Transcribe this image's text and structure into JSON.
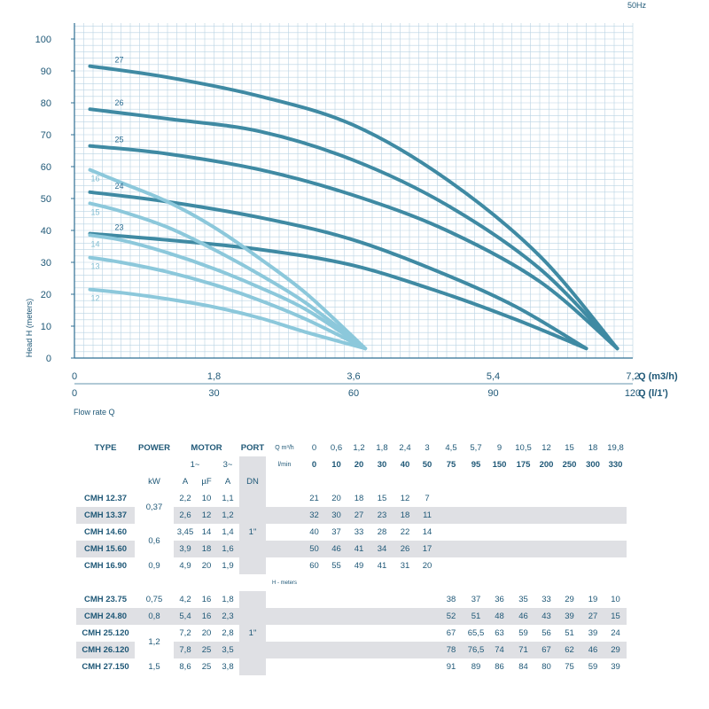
{
  "chart_data": {
    "type": "line",
    "frequency_label": "50Hz",
    "ylabel": "Head H (meters)",
    "xlabel": "Flow rate Q",
    "x_axis_label": "Q (m3/h)",
    "x2_axis_label": "Q (l/1')",
    "ylim": [
      0,
      105
    ],
    "xlim": [
      0,
      7.2
    ],
    "y_ticks": [
      "0",
      "10",
      "20",
      "30",
      "40",
      "50",
      "60",
      "70",
      "80",
      "90",
      "100"
    ],
    "x_ticks": [
      "0",
      "1,8",
      "3,6",
      "5,4",
      "7,2"
    ],
    "x2_ticks": [
      "0",
      "30",
      "60",
      "90",
      "120"
    ],
    "grid": true,
    "series": [
      {
        "name": "12",
        "family": "light",
        "color": "#8cc8db",
        "x": [
          0.2,
          0.6,
          1.2,
          1.8,
          2.4,
          3.0,
          3.75
        ],
        "y": [
          21.5,
          20.5,
          18.5,
          16,
          12.5,
          8,
          3
        ]
      },
      {
        "name": "13",
        "family": "light",
        "color": "#8cc8db",
        "x": [
          0.2,
          0.6,
          1.2,
          1.8,
          2.4,
          3.0,
          3.75
        ],
        "y": [
          31.5,
          30,
          27,
          23,
          18,
          12,
          3
        ]
      },
      {
        "name": "14",
        "family": "light",
        "color": "#8cc8db",
        "x": [
          0.2,
          0.6,
          1.2,
          1.8,
          2.4,
          3.0,
          3.75
        ],
        "y": [
          38.5,
          37,
          33,
          28,
          22,
          15,
          3
        ]
      },
      {
        "name": "15",
        "family": "light",
        "color": "#8cc8db",
        "x": [
          0.2,
          0.6,
          1.2,
          1.8,
          2.4,
          3.0,
          3.75
        ],
        "y": [
          48.5,
          46,
          41,
          34,
          26,
          17,
          3
        ]
      },
      {
        "name": "16",
        "family": "light",
        "color": "#8cc8db",
        "x": [
          0.2,
          0.6,
          1.2,
          1.8,
          2.4,
          3.0,
          3.75
        ],
        "y": [
          59,
          55,
          49,
          41,
          31,
          20,
          3
        ]
      },
      {
        "name": "23",
        "family": "dark",
        "color": "#3f8aa3",
        "x": [
          0.2,
          1.2,
          2.4,
          3.6,
          4.8,
          5.7,
          6.6
        ],
        "y": [
          39,
          37,
          34,
          29,
          20,
          12,
          3
        ]
      },
      {
        "name": "24",
        "family": "dark",
        "color": "#3f8aa3",
        "x": [
          0.2,
          1.2,
          2.4,
          3.6,
          4.8,
          5.7,
          6.6
        ],
        "y": [
          52,
          49,
          44,
          37,
          26,
          16,
          3
        ]
      },
      {
        "name": "25",
        "family": "dark",
        "color": "#3f8aa3",
        "x": [
          0.2,
          1.2,
          2.4,
          3.6,
          4.8,
          6.0,
          7.0
        ],
        "y": [
          66.5,
          64,
          59,
          51,
          40,
          24,
          3
        ]
      },
      {
        "name": "26",
        "family": "dark",
        "color": "#3f8aa3",
        "x": [
          0.2,
          1.2,
          2.4,
          3.6,
          4.8,
          6.0,
          7.0
        ],
        "y": [
          78,
          75,
          71,
          62,
          48,
          28,
          3
        ]
      },
      {
        "name": "27",
        "family": "dark",
        "color": "#3f8aa3",
        "x": [
          0.2,
          1.2,
          2.4,
          3.6,
          4.8,
          6.0,
          7.0
        ],
        "y": [
          91.5,
          88,
          82,
          73,
          56,
          32,
          3
        ]
      }
    ]
  },
  "table": {
    "headers": {
      "type": "TYPE",
      "power": "POWER",
      "motor": "MOTOR",
      "port": "PORT",
      "q_m3h": "Q m³/h",
      "q_lmin": "l/min",
      "phase1": "1~",
      "phase3": "3~",
      "kw": "kW",
      "a": "A",
      "uf": "µF",
      "a3": "A",
      "dn": "DN"
    },
    "q_m3h_values": [
      "0",
      "0,6",
      "1,2",
      "1,8",
      "2,4",
      "3",
      "4,5",
      "5,7",
      "9",
      "10,5",
      "12",
      "15",
      "18",
      "19,8"
    ],
    "q_lmin_values": [
      "0",
      "10",
      "20",
      "30",
      "40",
      "50",
      "75",
      "95",
      "150",
      "175",
      "200",
      "250",
      "300",
      "330"
    ],
    "h_meters_label": "H - meters",
    "group1": {
      "port_value": "1\"",
      "rows": [
        {
          "type": "CMH 12.37",
          "power": "0,37",
          "a": "2,2",
          "uf": "10",
          "a3": "1,1",
          "heads": [
            "21",
            "20",
            "18",
            "15",
            "12",
            "7",
            "",
            "",
            "",
            "",
            "",
            "",
            "",
            ""
          ]
        },
        {
          "type": "CMH 13.37",
          "power": "",
          "a": "2,6",
          "uf": "12",
          "a3": "1,2",
          "heads": [
            "32",
            "30",
            "27",
            "23",
            "18",
            "11",
            "",
            "",
            "",
            "",
            "",
            "",
            "",
            ""
          ]
        },
        {
          "type": "CMH 14.60",
          "power": "0,6",
          "a": "3,45",
          "uf": "14",
          "a3": "1,4",
          "heads": [
            "40",
            "37",
            "33",
            "28",
            "22",
            "14",
            "",
            "",
            "",
            "",
            "",
            "",
            "",
            ""
          ]
        },
        {
          "type": "CMH 15.60",
          "power": "",
          "a": "3,9",
          "uf": "18",
          "a3": "1,6",
          "heads": [
            "50",
            "46",
            "41",
            "34",
            "26",
            "17",
            "",
            "",
            "",
            "",
            "",
            "",
            "",
            ""
          ]
        },
        {
          "type": "CMH 16.90",
          "power": "0,9",
          "a": "4,9",
          "uf": "20",
          "a3": "1,9",
          "heads": [
            "60",
            "55",
            "49",
            "41",
            "31",
            "20",
            "",
            "",
            "",
            "",
            "",
            "",
            "",
            ""
          ]
        }
      ]
    },
    "group2": {
      "port_value": "1\"",
      "rows": [
        {
          "type": "CMH 23.75",
          "power": "0,75",
          "a": "4,2",
          "uf": "16",
          "a3": "1,8",
          "heads": [
            "",
            "",
            "",
            "",
            "",
            "",
            "38",
            "37",
            "36",
            "35",
            "33",
            "29",
            "19",
            "10"
          ]
        },
        {
          "type": "CMH 24.80",
          "power": "0,8",
          "a": "5,4",
          "uf": "16",
          "a3": "2,3",
          "heads": [
            "",
            "",
            "",
            "",
            "",
            "",
            "52",
            "51",
            "48",
            "46",
            "43",
            "39",
            "27",
            "15"
          ]
        },
        {
          "type": "CMH 25.120",
          "power": "1,2",
          "a": "7,2",
          "uf": "20",
          "a3": "2,8",
          "heads": [
            "",
            "",
            "",
            "",
            "",
            "",
            "67",
            "65,5",
            "63",
            "59",
            "56",
            "51",
            "39",
            "24"
          ]
        },
        {
          "type": "CMH 26.120",
          "power": "",
          "a": "7,8",
          "uf": "25",
          "a3": "3,5",
          "heads": [
            "",
            "",
            "",
            "",
            "",
            "",
            "78",
            "76,5",
            "74",
            "71",
            "67",
            "62",
            "46",
            "29"
          ]
        },
        {
          "type": "CMH 27.150",
          "power": "1,5",
          "a": "8,6",
          "uf": "25",
          "a3": "3,8",
          "heads": [
            "",
            "",
            "",
            "",
            "",
            "",
            "91",
            "89",
            "86",
            "84",
            "80",
            "75",
            "59",
            "39"
          ]
        }
      ]
    }
  }
}
